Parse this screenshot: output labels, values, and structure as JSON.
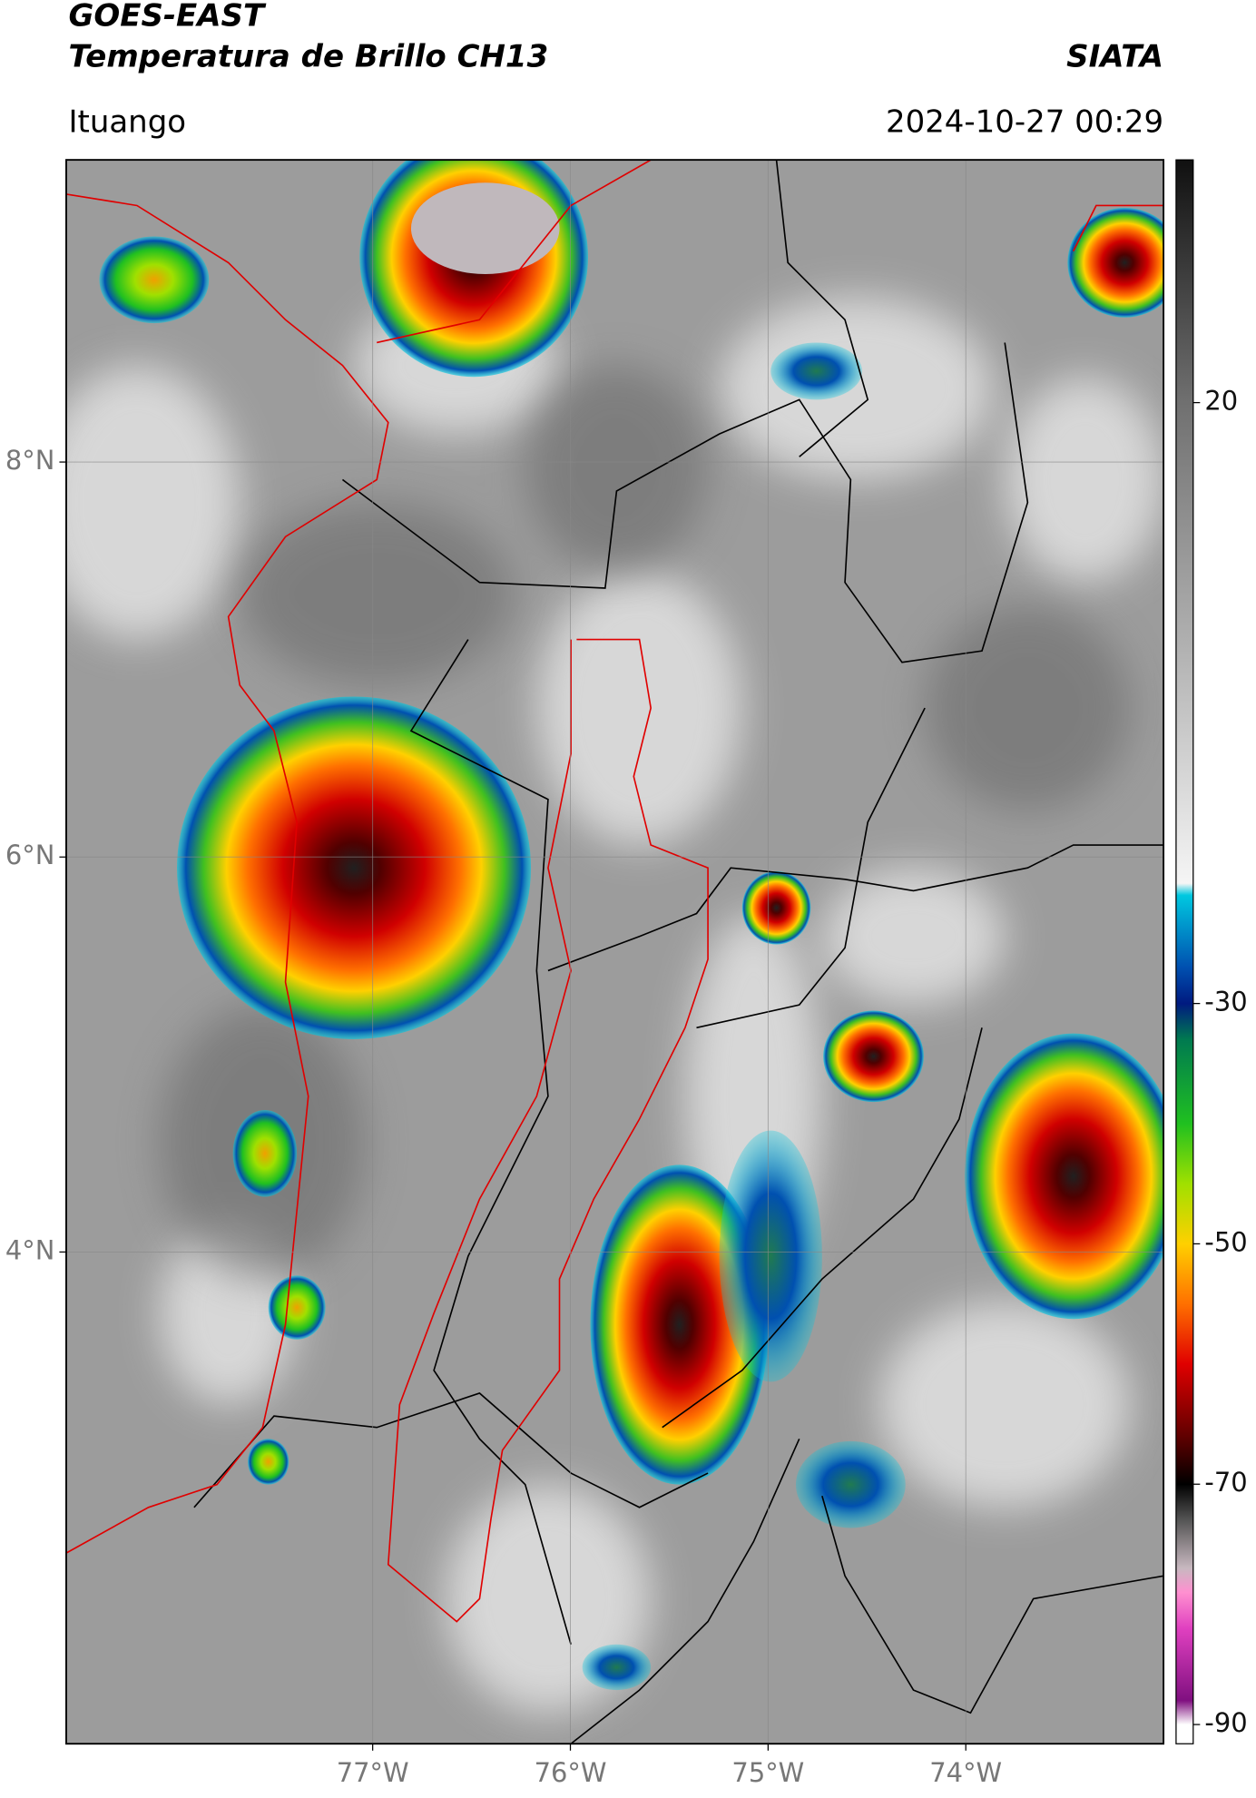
{
  "header": {
    "title": "GOES-EAST",
    "subtitle": "Temperatura de Brillo CH13",
    "source": "SIATA",
    "location": "Ituango",
    "datetime": "2024-10-27 00:29"
  },
  "chart_data": {
    "type": "map",
    "xlim": [
      -78.55,
      -73.0
    ],
    "ylim": [
      1.51,
      9.53
    ],
    "xticks": [
      {
        "value": -77,
        "label": "77°W"
      },
      {
        "value": -76,
        "label": "76°W"
      },
      {
        "value": -75,
        "label": "75°W"
      },
      {
        "value": -74,
        "label": "74°W"
      }
    ],
    "yticks": [
      {
        "value": 8,
        "label": "8°N"
      },
      {
        "value": 6,
        "label": "6°N"
      },
      {
        "value": 4,
        "label": "4°N"
      }
    ],
    "grid": true,
    "colorbar": {
      "clim": [
        -91.6,
        40.2
      ],
      "ticks": [
        20,
        -30,
        -50,
        -70,
        -90
      ],
      "colormap": [
        {
          "value": 40,
          "color": "#111111"
        },
        {
          "value": 20,
          "color": "#707070"
        },
        {
          "value": 0,
          "color": "#b0b0b0"
        },
        {
          "value": -20,
          "color": "#f5f5f5"
        },
        {
          "value": -21,
          "color": "#00c8e0"
        },
        {
          "value": -27,
          "color": "#0050b0"
        },
        {
          "value": -30,
          "color": "#001a80"
        },
        {
          "value": -33,
          "color": "#007a50"
        },
        {
          "value": -40,
          "color": "#20c020"
        },
        {
          "value": -45,
          "color": "#a0e000"
        },
        {
          "value": -50,
          "color": "#ffd000"
        },
        {
          "value": -55,
          "color": "#ff7000"
        },
        {
          "value": -60,
          "color": "#e00000"
        },
        {
          "value": -66,
          "color": "#600000"
        },
        {
          "value": -70,
          "color": "#000000"
        },
        {
          "value": -73,
          "color": "#555555"
        },
        {
          "value": -77,
          "color": "#c8b8c0"
        },
        {
          "value": -79,
          "color": "#ff90d0"
        },
        {
          "value": -82,
          "color": "#e040c0"
        },
        {
          "value": -88,
          "color": "#801080"
        },
        {
          "value": -90,
          "color": "#ffffff"
        }
      ]
    }
  }
}
